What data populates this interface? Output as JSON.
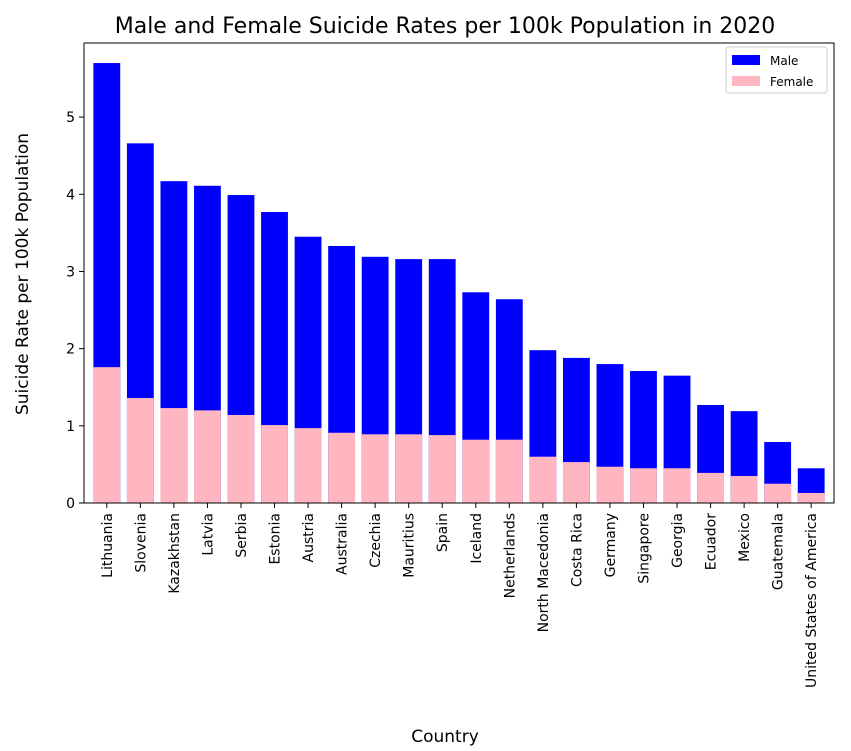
{
  "chart_data": {
    "type": "bar",
    "title": "Male and Female Suicide Rates per 100k Population in 2020",
    "x_label": "Country",
    "y_label": "Suicide Rate per 100k Population",
    "categories": [
      "Lithuania",
      "Slovenia",
      "Kazakhstan",
      "Latvia",
      "Serbia",
      "Estonia",
      "Austria",
      "Australia",
      "Czechia",
      "Mauritius",
      "Spain",
      "Iceland",
      "Netherlands",
      "North Macedonia",
      "Costa Rica",
      "Germany",
      "Singapore",
      "Georgia",
      "Ecuador",
      "Mexico",
      "Guatemala",
      "United States of America"
    ],
    "series": [
      {
        "name": "Male",
        "color": "#0000ff",
        "values": [
          5.7,
          4.66,
          4.17,
          4.11,
          3.99,
          3.77,
          3.45,
          3.33,
          3.19,
          3.16,
          3.16,
          2.73,
          2.64,
          1.98,
          1.88,
          1.8,
          1.71,
          1.65,
          1.27,
          1.19,
          0.79,
          0.45
        ]
      },
      {
        "name": "Female",
        "color": "#ffb6c1",
        "values": [
          1.76,
          1.36,
          1.23,
          1.2,
          1.14,
          1.01,
          0.97,
          0.91,
          0.89,
          0.89,
          0.88,
          0.82,
          0.82,
          0.6,
          0.53,
          0.47,
          0.45,
          0.45,
          0.39,
          0.35,
          0.25,
          0.13
        ]
      }
    ],
    "ylim": [
      0,
      5.96
    ],
    "yticks": [
      0,
      1,
      2,
      3,
      4,
      5
    ],
    "legend": "upper right"
  }
}
